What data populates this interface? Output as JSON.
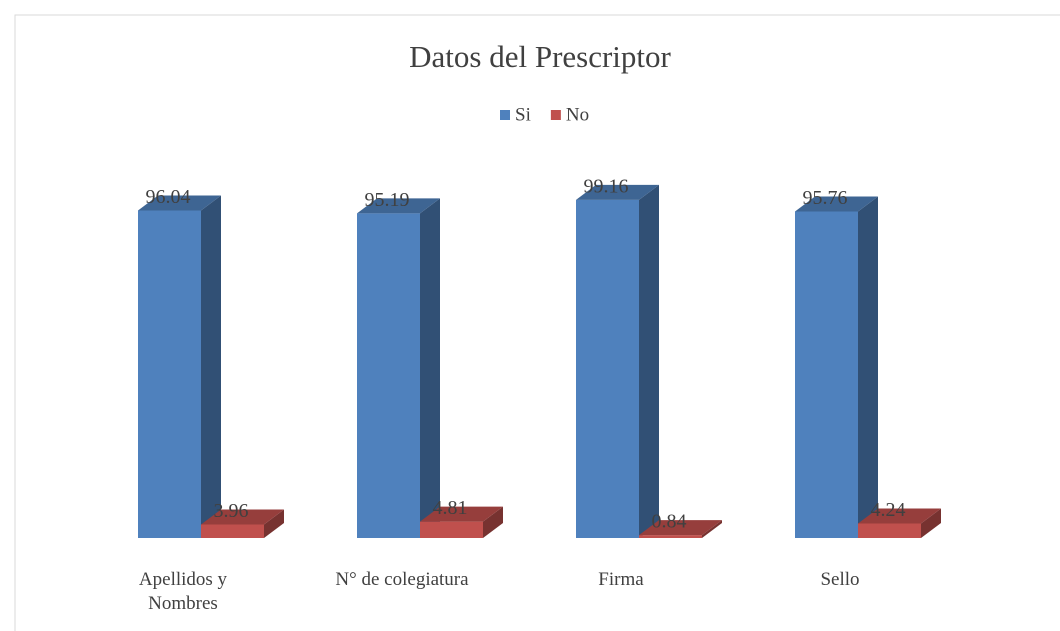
{
  "chart_data": {
    "type": "bar3d",
    "title": "Datos del Prescriptor",
    "categories": [
      "Apellidos y Nombres",
      "N° de colegiatura",
      "Firma",
      "Sello"
    ],
    "series": [
      {
        "name": "Si",
        "color": "#4f81bd",
        "values": [
          96.04,
          95.19,
          99.16,
          95.76
        ]
      },
      {
        "name": "No",
        "color": "#c0504d",
        "values": [
          3.96,
          4.81,
          0.84,
          4.24
        ]
      }
    ],
    "ylim": [
      0,
      100
    ],
    "legend": "top"
  }
}
